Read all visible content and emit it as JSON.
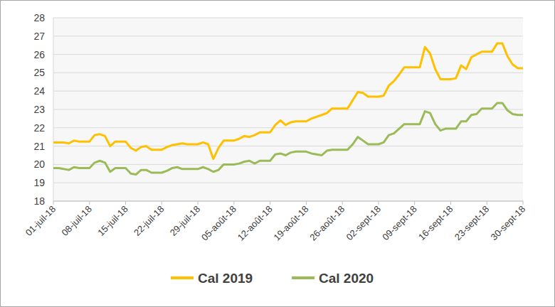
{
  "chart_data": {
    "type": "line",
    "categories": [
      "01-juil-18",
      null,
      null,
      null,
      null,
      null,
      null,
      "08-juil-18",
      null,
      null,
      null,
      null,
      null,
      null,
      "15-juil-18",
      null,
      null,
      null,
      null,
      null,
      null,
      "22-juil-18",
      null,
      null,
      null,
      null,
      null,
      null,
      "29-juil-18",
      null,
      null,
      null,
      null,
      null,
      null,
      "05-août-18",
      null,
      null,
      null,
      null,
      null,
      null,
      "12-août-18",
      null,
      null,
      null,
      null,
      null,
      null,
      "19-août-18",
      null,
      null,
      null,
      null,
      null,
      null,
      "26-août-18",
      null,
      null,
      null,
      null,
      null,
      null,
      "02-sept-18",
      null,
      null,
      null,
      null,
      null,
      null,
      "09-sept-18",
      null,
      null,
      null,
      null,
      null,
      null,
      "16-sept-18",
      null,
      null,
      null,
      null,
      null,
      null,
      "23-sept-18",
      null,
      null,
      null,
      null,
      null,
      null,
      "30-sept-18"
    ],
    "series": [
      {
        "name": "Cal 2019",
        "color": "#FFC000",
        "values": [
          21.2,
          21.2,
          21.2,
          21.15,
          21.3,
          21.25,
          21.25,
          21.25,
          21.6,
          21.65,
          21.55,
          21.0,
          21.25,
          21.25,
          21.25,
          20.9,
          20.75,
          20.95,
          21.0,
          20.8,
          20.8,
          20.8,
          20.95,
          21.05,
          21.1,
          21.15,
          21.1,
          21.1,
          21.1,
          21.2,
          21.1,
          20.3,
          20.9,
          21.3,
          21.3,
          21.3,
          21.4,
          21.55,
          21.5,
          21.6,
          21.75,
          21.75,
          21.75,
          22.15,
          22.4,
          22.15,
          22.3,
          22.35,
          22.35,
          22.35,
          22.5,
          22.6,
          22.7,
          22.8,
          23.05,
          23.05,
          23.05,
          23.05,
          23.5,
          23.95,
          23.9,
          23.7,
          23.7,
          23.7,
          23.75,
          24.3,
          24.55,
          24.9,
          25.3,
          25.3,
          25.3,
          25.3,
          26.4,
          26.05,
          25.2,
          24.65,
          24.65,
          24.65,
          24.7,
          25.4,
          25.2,
          25.85,
          26.0,
          26.15,
          26.15,
          26.15,
          26.6,
          26.6,
          25.9,
          25.45,
          25.25,
          25.25
        ]
      },
      {
        "name": "Cal 2020",
        "color": "#9BBB59",
        "values": [
          19.8,
          19.8,
          19.75,
          19.7,
          19.85,
          19.8,
          19.8,
          19.8,
          20.1,
          20.2,
          20.1,
          19.6,
          19.8,
          19.8,
          19.8,
          19.5,
          19.45,
          19.7,
          19.7,
          19.55,
          19.55,
          19.55,
          19.65,
          19.8,
          19.85,
          19.75,
          19.75,
          19.75,
          19.75,
          19.85,
          19.75,
          19.6,
          19.7,
          20.0,
          20.0,
          20.0,
          20.05,
          20.15,
          20.2,
          20.05,
          20.2,
          20.2,
          20.2,
          20.55,
          20.6,
          20.5,
          20.65,
          20.7,
          20.7,
          20.7,
          20.6,
          20.55,
          20.5,
          20.75,
          20.8,
          20.8,
          20.8,
          20.8,
          21.1,
          21.5,
          21.3,
          21.1,
          21.1,
          21.1,
          21.2,
          21.6,
          21.7,
          21.95,
          22.2,
          22.2,
          22.2,
          22.2,
          22.9,
          22.8,
          22.2,
          21.85,
          21.95,
          21.95,
          21.95,
          22.35,
          22.35,
          22.7,
          22.75,
          23.05,
          23.05,
          23.05,
          23.35,
          23.35,
          22.95,
          22.75,
          22.7,
          22.7
        ]
      }
    ],
    "ylim": [
      18,
      28
    ],
    "yticks": [
      18,
      19,
      20,
      21,
      22,
      23,
      24,
      25,
      26,
      27,
      28
    ],
    "grid": true,
    "legend": "bottom"
  }
}
